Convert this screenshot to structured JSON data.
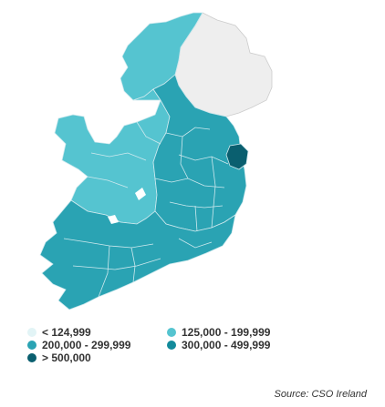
{
  "map": {
    "colors": {
      "band1": "#e2f4f6",
      "band2": "#55c4d0",
      "band3": "#2aa3b3",
      "band4": "#128a9b",
      "band5": "#0a5f6f",
      "ni": "#eeeeee",
      "border": "#cfe9ee"
    }
  },
  "legend": {
    "items": [
      {
        "label": "< 124,999",
        "color": "#e2f4f6",
        "icon": "legend-swatch-icon"
      },
      {
        "label": "125,000 - 199,999",
        "color": "#55c4d0",
        "icon": "legend-swatch-icon"
      },
      {
        "label": "200,000 - 299,999",
        "color": "#2aa3b3",
        "icon": "legend-swatch-icon"
      },
      {
        "label": "300,000 - 499,999",
        "color": "#128a9b",
        "icon": "legend-swatch-icon"
      },
      {
        "label": "> 500,000",
        "color": "#0a5f6f",
        "icon": "legend-swatch-icon"
      }
    ]
  },
  "source": {
    "text": "Source: CSO Ireland"
  }
}
